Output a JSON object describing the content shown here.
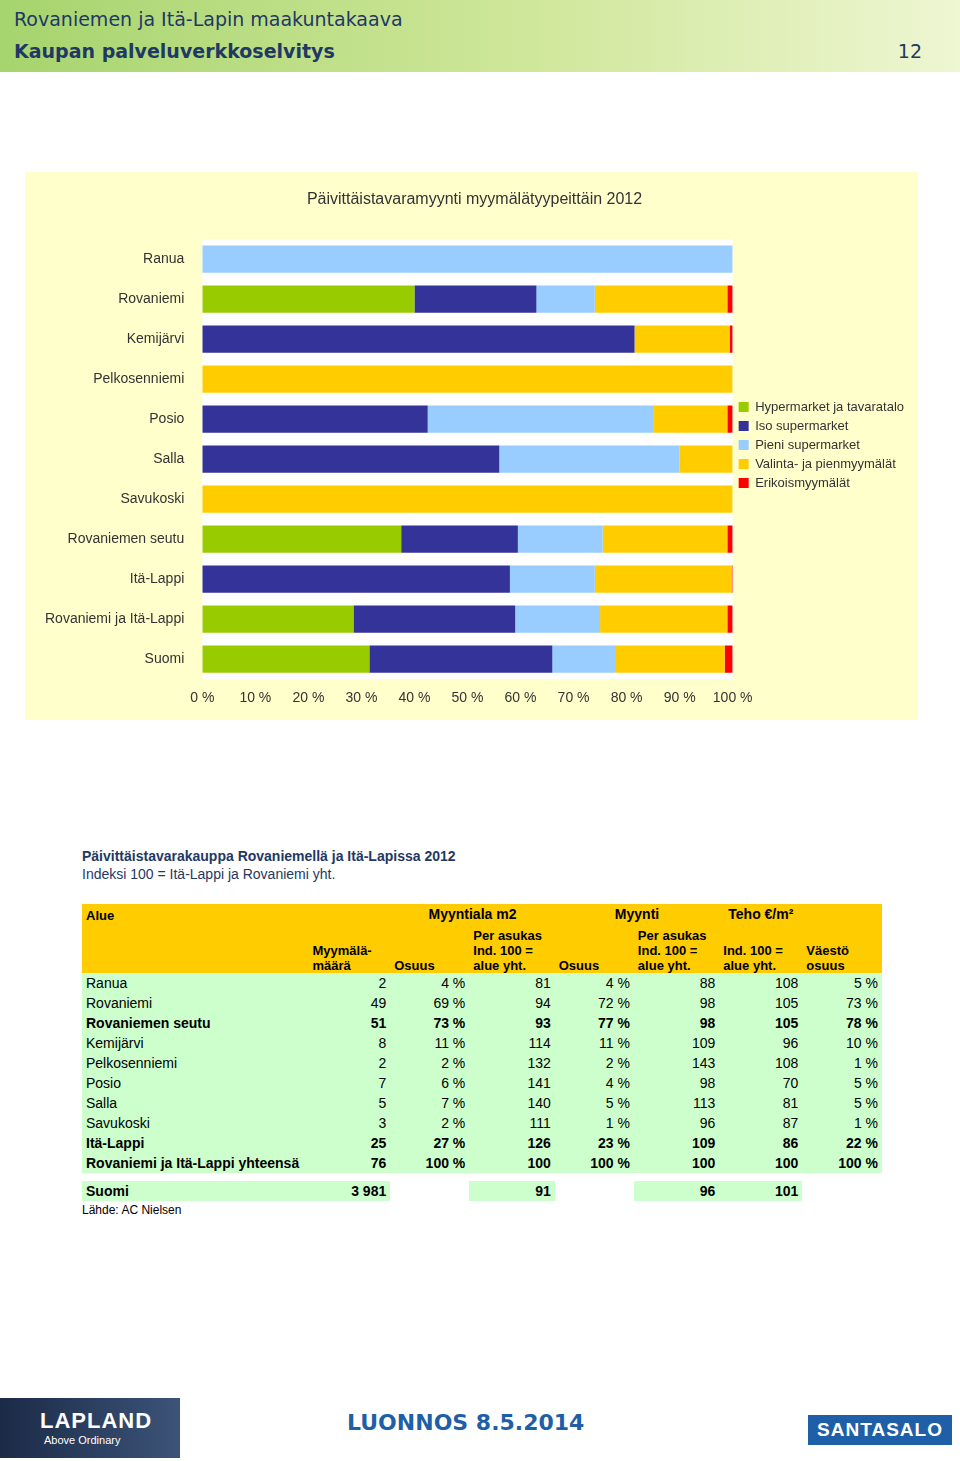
{
  "header": {
    "title": "Rovaniemen ja Itä-Lapin maakuntakaava",
    "subtitle": "Kaupan palveluverkkoselvitys",
    "page": "12"
  },
  "chart_data": {
    "type": "bar",
    "orientation": "horizontal",
    "stacked": true,
    "title": "Päivittäistavaramyynti myymälätyypeittäin 2012",
    "categories": [
      "Ranua",
      "Rovaniemi",
      "Kemijärvi",
      "Pelkosenniemi",
      "Posio",
      "Salla",
      "Savukoski",
      "Rovaniemen seutu",
      "Itä-Lappi",
      "Rovaniemi ja Itä-Lappi",
      "Suomi"
    ],
    "series": [
      {
        "name": "Hypermarket ja tavaratalo",
        "color": "#99cc00",
        "values": [
          0,
          40,
          0,
          0,
          0,
          0,
          0,
          37.5,
          0,
          28.5,
          31.5
        ]
      },
      {
        "name": "Iso supermarket",
        "color": "#333399",
        "values": [
          0,
          23,
          81.5,
          0,
          42.5,
          56,
          0,
          22,
          58,
          30.5,
          34.5
        ]
      },
      {
        "name": "Pieni supermarket",
        "color": "#99ccff",
        "values": [
          100,
          11,
          0,
          0,
          42.5,
          34,
          0,
          16,
          16,
          16,
          12
        ]
      },
      {
        "name": "Valinta- ja pienmyymälät",
        "color": "#ffcc00",
        "values": [
          0,
          25,
          18,
          100,
          14,
          10,
          100,
          23.5,
          25.8,
          24,
          20.5
        ]
      },
      {
        "name": "Erikoismyymälät",
        "color": "#ff0000",
        "values": [
          0,
          1,
          0.5,
          0,
          1,
          0,
          0,
          1,
          0.2,
          1,
          1.5
        ]
      }
    ],
    "xlim": [
      0,
      100
    ],
    "xticks": [
      {
        "value": 0,
        "label": "0 %"
      },
      {
        "value": 10,
        "label": "10 %"
      },
      {
        "value": 20,
        "label": "20 %"
      },
      {
        "value": 30,
        "label": "30 %"
      },
      {
        "value": 40,
        "label": "40 %"
      },
      {
        "value": 50,
        "label": "50 %"
      },
      {
        "value": 60,
        "label": "60 %"
      },
      {
        "value": 70,
        "label": "70 %"
      },
      {
        "value": 80,
        "label": "80 %"
      },
      {
        "value": 90,
        "label": "90 %"
      },
      {
        "value": 100,
        "label": "100 %"
      }
    ],
    "grid": false,
    "legend": "right"
  },
  "table": {
    "title": "Päivittäistavarakauppa Rovaniemellä ja Itä-Lapissa 2012",
    "subtitle": "Indeksi 100 = Itä-Lappi ja Rovaniemi yht.",
    "header": [
      {
        "lines": [
          "Alue"
        ]
      },
      {
        "lines": [
          "Myymälä-",
          "määrä"
        ]
      },
      {
        "group": "Myyntiala m2",
        "columns": [
          {
            "lines": [
              "Osuus"
            ]
          },
          {
            "lines": [
              "Per asukas",
              "Ind. 100 =",
              "alue yht."
            ]
          }
        ]
      },
      {
        "group": "Myynti",
        "columns": [
          {
            "lines": [
              "Osuus"
            ]
          },
          {
            "lines": [
              "Per asukas",
              "Ind. 100 =",
              "alue yht."
            ]
          }
        ]
      },
      {
        "group": "Teho €/m²",
        "columns": [
          {
            "lines": [
              "Ind. 100 =",
              "alue yht."
            ]
          }
        ]
      },
      {
        "lines": [
          "Väestö",
          "osuus"
        ]
      }
    ],
    "rows": [
      {
        "cells": [
          "Ranua",
          "2",
          "4 %",
          "81",
          "4 %",
          "88",
          "108",
          "5 %"
        ]
      },
      {
        "cells": [
          "Rovaniemi",
          "49",
          "69 %",
          "94",
          "72 %",
          "98",
          "105",
          "73 %"
        ]
      },
      {
        "cells": [
          "Rovaniemen seutu",
          "51",
          "73 %",
          "93",
          "77 %",
          "98",
          "105",
          "78 %"
        ],
        "bold": true
      },
      {
        "cells": [
          "Kemijärvi",
          "8",
          "11 %",
          "114",
          "11 %",
          "109",
          "96",
          "10 %"
        ]
      },
      {
        "cells": [
          "Pelkosenniemi",
          "2",
          "2 %",
          "132",
          "2 %",
          "143",
          "108",
          "1 %"
        ]
      },
      {
        "cells": [
          "Posio",
          "7",
          "6 %",
          "141",
          "4 %",
          "98",
          "70",
          "5 %"
        ]
      },
      {
        "cells": [
          "Salla",
          "5",
          "7 %",
          "140",
          "5 %",
          "113",
          "81",
          "5 %"
        ]
      },
      {
        "cells": [
          "Savukoski",
          "3",
          "2 %",
          "111",
          "1 %",
          "96",
          "87",
          "1 %"
        ]
      },
      {
        "cells": [
          "Itä-Lappi",
          "25",
          "27 %",
          "126",
          "23 %",
          "109",
          "86",
          "22 %"
        ],
        "bold": true
      },
      {
        "cells": [
          "Rovaniemi ja Itä-Lappi yhteensä",
          "76",
          "100 %",
          "100",
          "100 %",
          "100",
          "100",
          "100 %"
        ],
        "bold": true
      }
    ],
    "summary_rows": [
      {
        "cells": [
          "Suomi",
          "3 981",
          null,
          "91",
          null,
          "96",
          "101",
          null
        ],
        "bold": true
      }
    ],
    "source": "Lähde: AC Nielsen"
  },
  "footer": {
    "logo_left": [
      "LAPLAND",
      "Above Ordinary"
    ],
    "draft": "LUONNOS 8.5.2014",
    "logo_right": "SANTASALO"
  }
}
